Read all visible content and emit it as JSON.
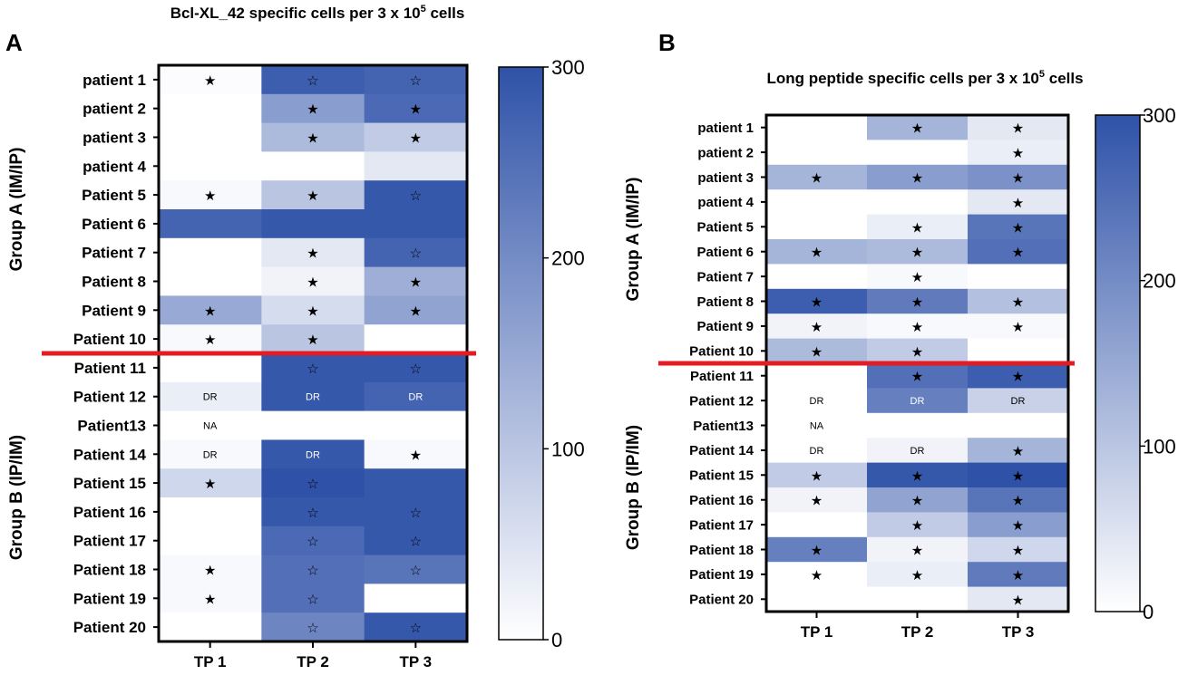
{
  "colors": {
    "scale_max": "#2f52a8",
    "scale_min": "#ffffff",
    "separator": "#e31b23",
    "frame": "#000000",
    "dark_text": "#ffffff"
  },
  "chart_data": [
    {
      "type": "heatmap",
      "panel_label": "A",
      "title": "Bcl-XL_42 specific cells per 3 x 10",
      "title_superscript": "5",
      "title_suffix": " cells",
      "columns": [
        "TP 1",
        "TP 2",
        "TP 3"
      ],
      "rows": [
        "patient 1",
        "patient 2",
        "patient 3",
        "patient 4",
        "Patient 5",
        "Patient 6",
        "Patient 7",
        "Patient 8",
        "Patient 9",
        "Patient 10",
        "Patient 11",
        "Patient 12",
        "Patient13",
        "Patient 14",
        "Patient 15",
        "Patient 16",
        "Patient 17",
        "Patient 18",
        "Patient 19",
        "Patient 20"
      ],
      "values": [
        [
          5,
          280,
          270
        ],
        [
          0,
          170,
          260
        ],
        [
          0,
          120,
          90
        ],
        [
          0,
          0,
          40
        ],
        [
          10,
          100,
          290
        ],
        [
          270,
          290,
          290
        ],
        [
          0,
          40,
          270
        ],
        [
          0,
          20,
          140
        ],
        [
          150,
          60,
          160
        ],
        [
          10,
          100,
          0
        ],
        [
          0,
          290,
          290
        ],
        [
          30,
          290,
          270
        ],
        [
          0,
          0,
          0
        ],
        [
          10,
          290,
          10
        ],
        [
          70,
          300,
          290
        ],
        [
          0,
          290,
          290
        ],
        [
          0,
          260,
          290
        ],
        [
          10,
          250,
          240
        ],
        [
          10,
          250,
          0
        ],
        [
          0,
          210,
          290
        ]
      ],
      "markers": [
        [
          "★",
          "☆",
          "☆"
        ],
        [
          "",
          "★",
          "★"
        ],
        [
          "",
          "★",
          "★"
        ],
        [
          "",
          "",
          ""
        ],
        [
          "★",
          "★",
          "☆"
        ],
        [
          "",
          "",
          ""
        ],
        [
          "",
          "★",
          "☆"
        ],
        [
          "",
          "★",
          "★"
        ],
        [
          "★",
          "★",
          "★"
        ],
        [
          "★",
          "★",
          ""
        ],
        [
          "",
          "☆",
          "☆"
        ],
        [
          "DR",
          "DR",
          "DR"
        ],
        [
          "NA",
          "",
          ""
        ],
        [
          "DR",
          "DR",
          "★"
        ],
        [
          "★",
          "☆",
          ""
        ],
        [
          "",
          "☆",
          "☆"
        ],
        [
          "",
          "☆",
          "☆"
        ],
        [
          "★",
          "☆",
          "☆"
        ],
        [
          "★",
          "☆",
          ""
        ],
        [
          "",
          "☆",
          "☆"
        ]
      ],
      "groups": [
        {
          "label": "Group A (IM/IP)",
          "first_row": 0,
          "last_row": 9
        },
        {
          "label": "Group B (IP/IM)",
          "first_row": 10,
          "last_row": 19
        }
      ],
      "colorbar": {
        "min": 0,
        "max": 300,
        "ticks": [
          "300",
          "200",
          "100",
          "0"
        ]
      }
    },
    {
      "type": "heatmap",
      "panel_label": "B",
      "title": "Long peptide specific cells per 3 x 10",
      "title_superscript": "5",
      "title_suffix": " cells",
      "columns": [
        "TP 1",
        "TP 2",
        "TP 3"
      ],
      "rows": [
        "patient 1",
        "patient 2",
        "patient 3",
        "patient 4",
        "Patient 5",
        "Patient 6",
        "Patient 7",
        "Patient 8",
        "Patient 9",
        "Patient 10",
        "Patient 11",
        "Patient 12",
        "Patient13",
        "Patient 14",
        "Patient 15",
        "Patient 16",
        "Patient 17",
        "Patient 18",
        "Patient 19",
        "Patient 20"
      ],
      "values": [
        [
          0,
          130,
          40
        ],
        [
          0,
          0,
          30
        ],
        [
          130,
          170,
          190
        ],
        [
          0,
          0,
          40
        ],
        [
          0,
          30,
          240
        ],
        [
          130,
          120,
          250
        ],
        [
          0,
          10,
          0
        ],
        [
          280,
          230,
          110
        ],
        [
          20,
          10,
          10
        ],
        [
          120,
          90,
          0
        ],
        [
          0,
          250,
          280
        ],
        [
          0,
          220,
          80
        ],
        [
          0,
          0,
          0
        ],
        [
          0,
          20,
          130
        ],
        [
          90,
          290,
          300
        ],
        [
          20,
          160,
          240
        ],
        [
          0,
          90,
          170
        ],
        [
          220,
          20,
          70
        ],
        [
          0,
          30,
          230
        ],
        [
          0,
          0,
          40
        ]
      ],
      "markers": [
        [
          "",
          "★",
          "★"
        ],
        [
          "",
          "",
          "★"
        ],
        [
          "★",
          "★",
          "★"
        ],
        [
          "",
          "",
          "★"
        ],
        [
          "",
          "★",
          "★"
        ],
        [
          "★",
          "★",
          "★"
        ],
        [
          "",
          "★",
          ""
        ],
        [
          "★",
          "★",
          "★"
        ],
        [
          "★",
          "★",
          "★"
        ],
        [
          "★",
          "★",
          ""
        ],
        [
          "",
          "★",
          "★"
        ],
        [
          "DR",
          "DR",
          "DR"
        ],
        [
          "NA",
          "",
          ""
        ],
        [
          "DR",
          "DR",
          "★"
        ],
        [
          "★",
          "★",
          "★"
        ],
        [
          "★",
          "★",
          "★"
        ],
        [
          "",
          "★",
          "★"
        ],
        [
          "★",
          "★",
          "★"
        ],
        [
          "★",
          "★",
          "★"
        ],
        [
          "",
          "",
          "★"
        ]
      ],
      "groups": [
        {
          "label": "Group A (IM/IP)",
          "first_row": 0,
          "last_row": 9
        },
        {
          "label": "Group B (IP/IM)",
          "first_row": 10,
          "last_row": 19
        }
      ],
      "colorbar": {
        "min": 0,
        "max": 300,
        "ticks": [
          "300",
          "200",
          "100",
          "0"
        ]
      }
    }
  ]
}
